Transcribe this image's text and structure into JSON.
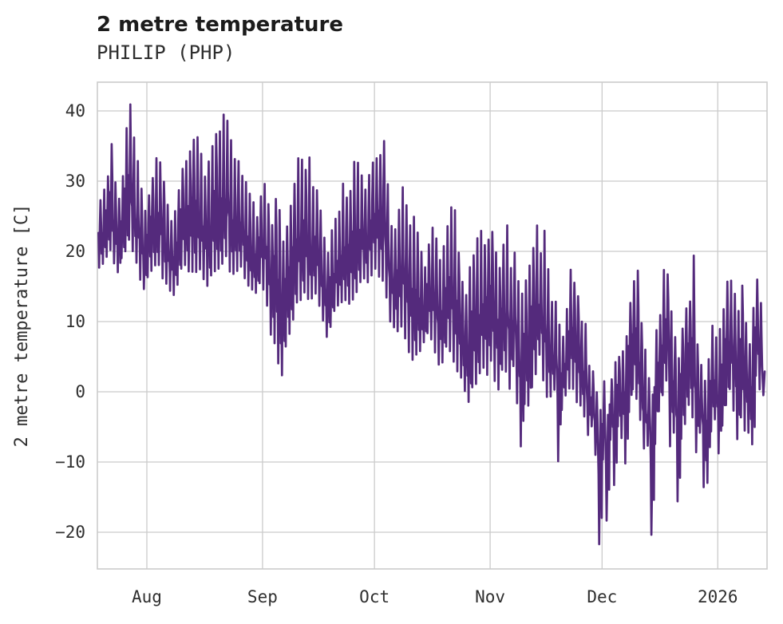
{
  "header": {
    "title": "2 metre temperature",
    "subtitle": "PHILIP (PHP)"
  },
  "chart_data": {
    "type": "line",
    "title": "2 metre temperature",
    "subtitle": "PHILIP (PHP)",
    "station": "PHILIP (PHP)",
    "ylabel": "2 metre temperature [C]",
    "xlabel": "",
    "unit": "C",
    "grid": true,
    "legend_position": "none",
    "line_color": "#542a7c",
    "grid_color": "#cbcbcb",
    "background_color": "#ffffff",
    "ylim": [
      -25.5,
      44
    ],
    "y_ticks": [
      40,
      30,
      20,
      10,
      0,
      -10,
      -20
    ],
    "x_ticks": [
      {
        "label": "Aug",
        "day": 13
      },
      {
        "label": "Sep",
        "day": 44
      },
      {
        "label": "Oct",
        "day": 74
      },
      {
        "label": "Nov",
        "day": 105
      },
      {
        "label": "Dec",
        "day": 135
      },
      {
        "label": "2026",
        "day": 166
      }
    ],
    "x_range_days": [
      0,
      179
    ],
    "series": [
      {
        "name": "2 metre temperature",
        "note": "daily min/max envelope in degrees C, day 0 = about two weeks before Aug tick",
        "daily_min": [
          17.5,
          18,
          19,
          20,
          18,
          17,
          19,
          20,
          21,
          20,
          18,
          15.5,
          14.5,
          16,
          17,
          18,
          17.5,
          16,
          15,
          14,
          13.5,
          15,
          17,
          18,
          16.5,
          17,
          16.5,
          17,
          15.5,
          15,
          16,
          17,
          17.5,
          18,
          18.5,
          17,
          16.5,
          17,
          17.5,
          16,
          15,
          14.5,
          14,
          15,
          14,
          12,
          8,
          6.5,
          4,
          1.8,
          6,
          8,
          10,
          12,
          13,
          13.5,
          13,
          13,
          13.5,
          12,
          10,
          7.7,
          9,
          11,
          12,
          12.5,
          13,
          12,
          13,
          14,
          15,
          16,
          15,
          16,
          17,
          16,
          15,
          13,
          9.5,
          9,
          8,
          8.5,
          7,
          5,
          4.5,
          5,
          5.5,
          7,
          8,
          7,
          5,
          3.5,
          4,
          6,
          5,
          4,
          2.5,
          2,
          0,
          -1.5,
          0,
          1,
          2,
          3,
          2,
          4,
          1,
          0,
          3,
          2,
          0,
          3,
          -2,
          -8,
          -2,
          -2,
          0,
          2,
          5,
          1,
          -1,
          -1,
          0,
          -10.5,
          -3,
          -1,
          0,
          0,
          -2,
          -2,
          -4,
          -6.5,
          -5,
          -9,
          -22,
          -10,
          -18.9,
          -7,
          -13.5,
          -5,
          -7,
          -10.5,
          -3,
          0,
          -1,
          -4,
          -8.5,
          -8,
          -20.9,
          -8,
          -3,
          -1,
          1,
          -8.3,
          -6,
          -15.8,
          -7,
          -5,
          -2,
          -4,
          -9,
          -6,
          -14,
          -13.6,
          -6,
          -4,
          -9,
          -5,
          -2,
          0,
          -3,
          -7,
          -4,
          -6,
          -5.9,
          -7.5,
          2,
          0,
          -0.5
        ],
        "daily_max": [
          27.5,
          29,
          31,
          35.5,
          30,
          27.5,
          31,
          38,
          41.2,
          36.5,
          33,
          29,
          26,
          28,
          30.5,
          33.5,
          33,
          30,
          27,
          24.5,
          26,
          29,
          32,
          33,
          34.5,
          36,
          36.5,
          34,
          31,
          33,
          35.5,
          37,
          37.5,
          39.5,
          39.2,
          36,
          33.5,
          33,
          31,
          30,
          28.5,
          27,
          25,
          28,
          30,
          27,
          24,
          28,
          26,
          22,
          24,
          27,
          30,
          33.5,
          33.5,
          32,
          33.4,
          29.5,
          29,
          26,
          22,
          20,
          23,
          25,
          26,
          30,
          28,
          29,
          32.8,
          33,
          31,
          29,
          31,
          33,
          33.5,
          34,
          36.2,
          30,
          24,
          23.5,
          26,
          29.3,
          27,
          24,
          25.5,
          23,
          20,
          18,
          21,
          23.8,
          22,
          19,
          21,
          24,
          26.3,
          26,
          20,
          16,
          14,
          18,
          20,
          22.3,
          23,
          21,
          21.7,
          22.8,
          20,
          18,
          21,
          24,
          18,
          20,
          16,
          14,
          16,
          18,
          21,
          24,
          20,
          23.4,
          18,
          13,
          13,
          10,
          8,
          12,
          17.7,
          16,
          14,
          10,
          10,
          4,
          3,
          0,
          -2,
          1.5,
          -3,
          2,
          4.5,
          5,
          6,
          8,
          13,
          16.2,
          17.3,
          10,
          6,
          2,
          0,
          9,
          11,
          17.5,
          17,
          12,
          8,
          5,
          9,
          12,
          13,
          19.6,
          7,
          4,
          2,
          5,
          9.7,
          8,
          9,
          12,
          15.8,
          16,
          14,
          12,
          15.5,
          10,
          7,
          12,
          16.4,
          13,
          3
        ]
      }
    ]
  }
}
